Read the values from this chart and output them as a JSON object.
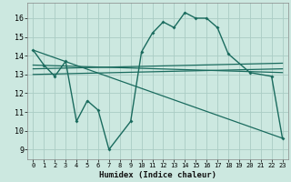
{
  "xlabel": "Humidex (Indice chaleur)",
  "xlim": [
    -0.5,
    23.5
  ],
  "ylim": [
    8.5,
    16.8
  ],
  "xticks": [
    0,
    1,
    2,
    3,
    4,
    5,
    6,
    7,
    8,
    9,
    10,
    11,
    12,
    13,
    14,
    15,
    16,
    17,
    18,
    19,
    20,
    21,
    22,
    23
  ],
  "yticks": [
    9,
    10,
    11,
    12,
    13,
    14,
    15,
    16
  ],
  "background_color": "#cce8e0",
  "grid_color": "#aaccC4",
  "line_color": "#1a6b5e",
  "main_series_x": [
    0,
    1,
    2,
    3,
    4,
    5,
    6,
    7,
    9,
    10,
    11,
    12,
    13,
    14,
    15,
    16,
    17,
    18,
    20,
    22,
    23
  ],
  "main_series_y": [
    14.3,
    13.5,
    12.9,
    13.7,
    10.5,
    11.6,
    11.1,
    9.0,
    10.5,
    14.2,
    15.2,
    15.8,
    15.5,
    16.3,
    16.0,
    16.0,
    15.5,
    14.1,
    13.1,
    12.9,
    9.6
  ],
  "line1_x": [
    0,
    23
  ],
  "line1_y": [
    14.3,
    9.6
  ],
  "line2_x": [
    0,
    23
  ],
  "line2_y": [
    13.3,
    13.6
  ],
  "line3_x": [
    0,
    23
  ],
  "line3_y": [
    13.0,
    13.3
  ],
  "line4_x": [
    0,
    23
  ],
  "line4_y": [
    13.5,
    13.1
  ]
}
